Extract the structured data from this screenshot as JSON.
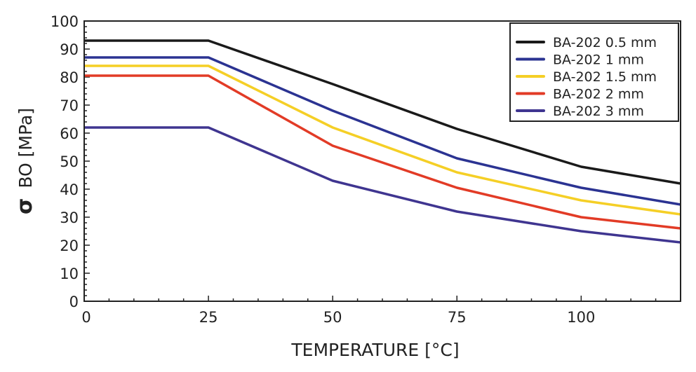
{
  "chart_data": {
    "type": "line",
    "title": "",
    "xlabel": "TEMPERATURE [°C]",
    "ylabel_symbol": "σ",
    "ylabel": "BO [MPa]",
    "xlim": [
      0,
      120
    ],
    "ylim": [
      0,
      100
    ],
    "xticks": [
      0,
      25,
      50,
      75,
      100
    ],
    "yticks": [
      0,
      10,
      20,
      30,
      40,
      50,
      60,
      70,
      80,
      90,
      100
    ],
    "grid": false,
    "legend_position": "top-right",
    "x": [
      0,
      25,
      50,
      75,
      100,
      120
    ],
    "series": [
      {
        "name": "BA-202 0.5 mm",
        "color": "#1a1a1a",
        "values": [
          93,
          93,
          77.5,
          61.5,
          48,
          42
        ]
      },
      {
        "name": "BA-202 1 mm",
        "color": "#2b3392",
        "values": [
          87,
          87,
          68,
          51,
          40.5,
          34.5
        ]
      },
      {
        "name": "BA-202 1.5 mm",
        "color": "#f5cf26",
        "values": [
          84,
          84,
          62,
          46,
          36,
          31
        ]
      },
      {
        "name": "BA-202 2 mm",
        "color": "#e23b26",
        "values": [
          80.5,
          80.5,
          55.5,
          40.5,
          30,
          26
        ]
      },
      {
        "name": "BA-202 3 mm",
        "color": "#3f3590",
        "values": [
          62,
          62,
          43,
          32,
          25,
          21
        ]
      }
    ]
  }
}
